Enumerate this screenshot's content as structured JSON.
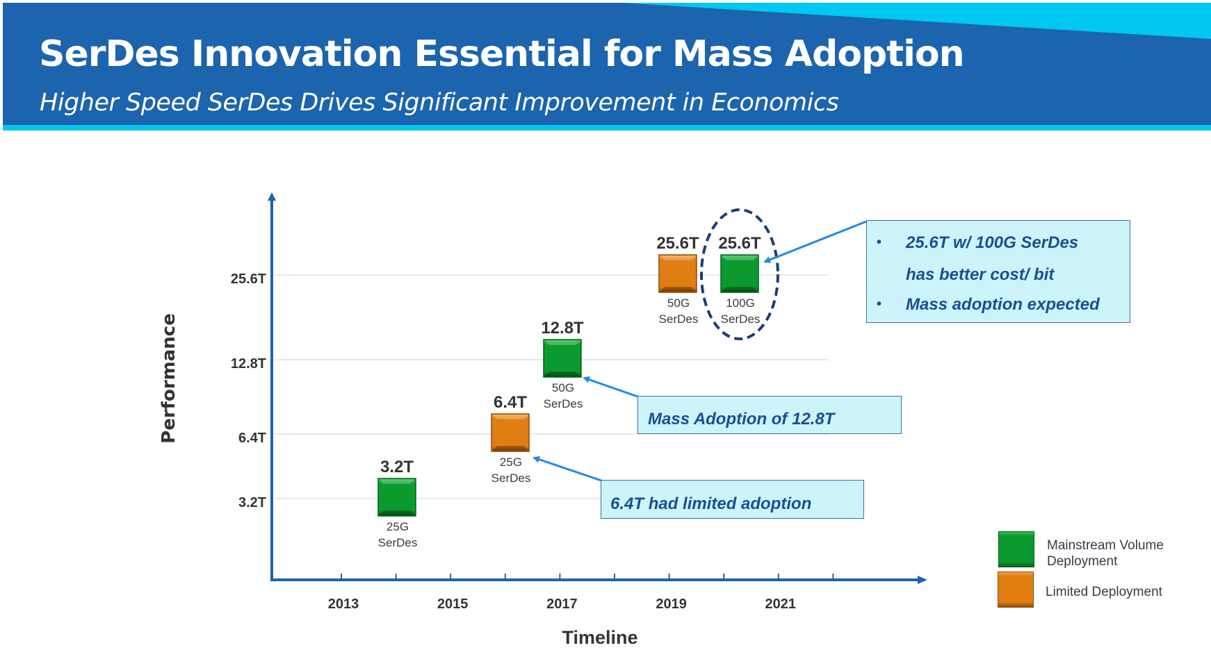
{
  "header": {
    "title": "SerDes Innovation Essential for Mass Adoption",
    "subtitle": "Higher Speed SerDes Drives Significant Improvement in Economics",
    "colors": {
      "primary": "#1c64ad",
      "accent": "#00c8f0"
    }
  },
  "chart_data": {
    "type": "scatter",
    "title": "",
    "xlabel": "Timeline",
    "ylabel": "Performance",
    "x_ticks": [
      "2013",
      "2015",
      "2017",
      "2019",
      "2021"
    ],
    "x_range": [
      2012,
      2024
    ],
    "y_ticks": [
      "3.2T",
      "6.4T",
      "12.8T",
      "25.6T"
    ],
    "grid": true,
    "legend_position": "bottom-right",
    "legend": [
      {
        "name": "Mainstream Volume Deployment",
        "color": "#0a9a2e"
      },
      {
        "name": "Limited Deployment",
        "color": "#e07e12"
      }
    ],
    "points": [
      {
        "year": 2014,
        "performance": "3.2T",
        "label": "3.2T",
        "serdes": [
          "25G",
          "SerDes"
        ],
        "category": "Mainstream Volume Deployment"
      },
      {
        "year": 2016,
        "performance": "6.4T",
        "label": "6.4T",
        "serdes": [
          "25G",
          "SerDes"
        ],
        "category": "Limited Deployment"
      },
      {
        "year": 2017,
        "performance": "12.8T",
        "label": "12.8T",
        "serdes": [
          "50G",
          "SerDes"
        ],
        "category": "Mainstream Volume Deployment"
      },
      {
        "year": 2019.2,
        "performance": "25.6T",
        "label": "25.6T",
        "serdes": [
          "50G",
          "SerDes"
        ],
        "category": "Limited Deployment"
      },
      {
        "year": 2020.4,
        "performance": "25.6T",
        "label": "25.6T",
        "serdes": [
          "100G",
          "SerDes"
        ],
        "category": "Mainstream Volume Deployment",
        "highlighted": true
      }
    ],
    "annotations": [
      {
        "text": "6.4T had limited adoption",
        "points_to": "6.4T / 25G SerDes"
      },
      {
        "text": "Mass Adoption of 12.8T",
        "points_to": "12.8T / 50G SerDes"
      },
      {
        "bullets": [
          "25.6T w/ 100G SerDes",
          "has better cost/ bit",
          "Mass adoption expected"
        ],
        "points_to": "25.6T / 100G SerDes"
      }
    ]
  },
  "callouts": {
    "limited": "6.4T had limited adoption",
    "mass": "Mass Adoption of 12.8T",
    "bullet_char": "•",
    "line1": "25.6T w/ 100G SerDes",
    "line2": "has better cost/ bit",
    "line3": "Mass adoption expected"
  },
  "legend": {
    "mainstream": "Mainstream Volume Deployment",
    "limited": "Limited Deployment"
  }
}
